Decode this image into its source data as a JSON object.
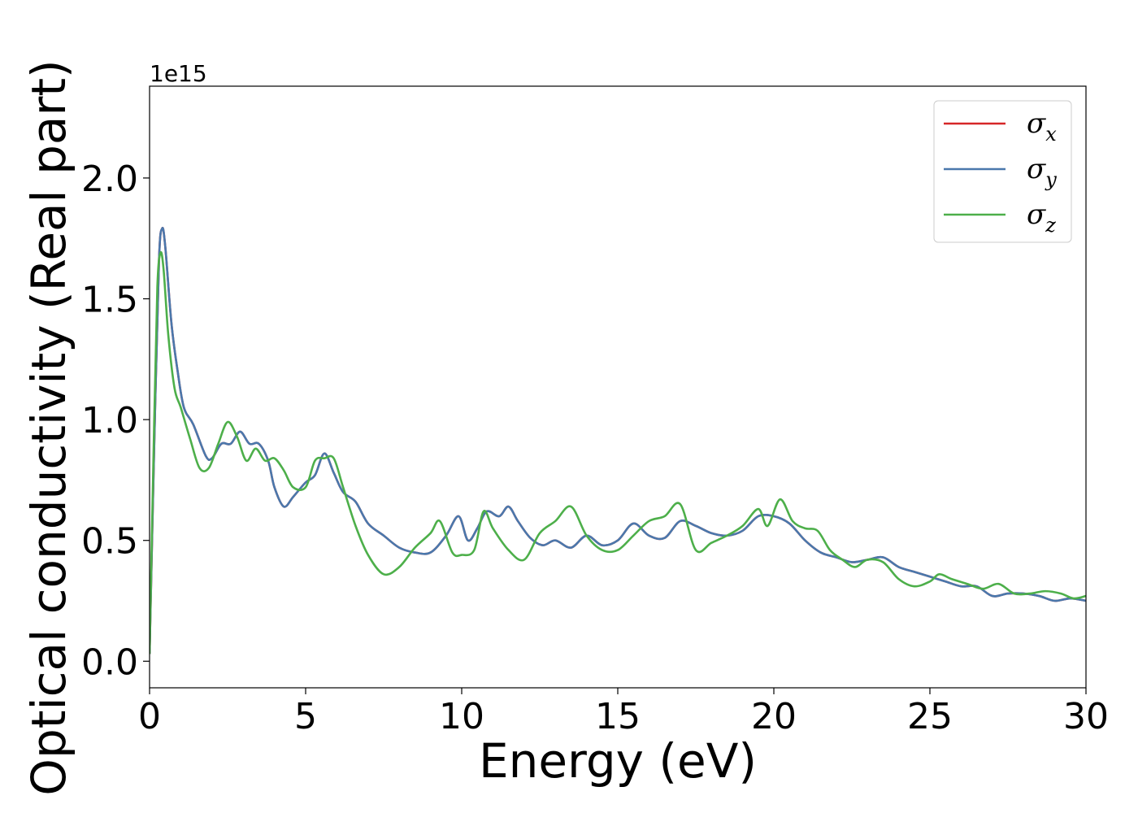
{
  "chart_data": {
    "type": "line",
    "title": "",
    "xlabel": "Energy (eV)",
    "ylabel": "Optical conductivity (Real part)",
    "y_offset_label": "1e15",
    "xlim": [
      0,
      30
    ],
    "ylim": [
      -0.11,
      2.38
    ],
    "xticks": [
      0,
      5,
      10,
      15,
      20,
      25,
      30
    ],
    "xtick_labels": [
      "0",
      "5",
      "10",
      "15",
      "20",
      "25",
      "30"
    ],
    "yticks": [
      0.0,
      0.5,
      1.0,
      1.5,
      2.0
    ],
    "ytick_labels": [
      "0.0",
      "0.5",
      "1.0",
      "1.5",
      "2.0"
    ],
    "grid": false,
    "legend_position": "top-right",
    "series": [
      {
        "name": "σx",
        "label_main": "σ",
        "label_sub": "x",
        "color": "#d62728",
        "x": [
          0,
          0.15,
          0.3,
          0.4,
          0.5,
          0.7,
          0.9,
          1.1,
          1.4,
          1.8,
          2.0,
          2.3,
          2.6,
          2.9,
          3.2,
          3.5,
          3.8,
          4.0,
          4.3,
          4.6,
          5.0,
          5.3,
          5.6,
          5.9,
          6.2,
          6.6,
          7.0,
          7.5,
          8.0,
          8.5,
          9.0,
          9.5,
          9.9,
          10.2,
          10.5,
          10.8,
          11.2,
          11.5,
          11.8,
          12.2,
          12.6,
          13.0,
          13.5,
          14.0,
          14.5,
          15.0,
          15.5,
          16.0,
          16.5,
          17.0,
          17.5,
          18.0,
          18.5,
          19.0,
          19.5,
          20.0,
          20.5,
          21.0,
          21.5,
          22.0,
          22.5,
          23.0,
          23.5,
          24.0,
          24.5,
          25.0,
          25.5,
          26.0,
          26.5,
          27.0,
          27.5,
          28.0,
          28.5,
          29.0,
          29.5,
          30.0
        ],
        "y": [
          0.03,
          0.9,
          1.65,
          1.79,
          1.72,
          1.4,
          1.2,
          1.05,
          0.98,
          0.85,
          0.84,
          0.9,
          0.9,
          0.95,
          0.9,
          0.9,
          0.83,
          0.72,
          0.64,
          0.68,
          0.74,
          0.77,
          0.86,
          0.78,
          0.7,
          0.66,
          0.57,
          0.52,
          0.47,
          0.45,
          0.45,
          0.52,
          0.6,
          0.5,
          0.55,
          0.62,
          0.6,
          0.64,
          0.58,
          0.51,
          0.48,
          0.5,
          0.47,
          0.52,
          0.48,
          0.5,
          0.57,
          0.52,
          0.51,
          0.58,
          0.56,
          0.53,
          0.52,
          0.54,
          0.6,
          0.6,
          0.57,
          0.5,
          0.45,
          0.43,
          0.41,
          0.42,
          0.43,
          0.39,
          0.37,
          0.35,
          0.33,
          0.31,
          0.31,
          0.27,
          0.28,
          0.28,
          0.27,
          0.25,
          0.26,
          0.25
        ]
      },
      {
        "name": "σy",
        "label_main": "σ",
        "label_sub": "y",
        "color": "#4a78ac",
        "x": [
          0,
          0.15,
          0.3,
          0.4,
          0.5,
          0.7,
          0.9,
          1.1,
          1.4,
          1.8,
          2.0,
          2.3,
          2.6,
          2.9,
          3.2,
          3.5,
          3.8,
          4.0,
          4.3,
          4.6,
          5.0,
          5.3,
          5.6,
          5.9,
          6.2,
          6.6,
          7.0,
          7.5,
          8.0,
          8.5,
          9.0,
          9.5,
          9.9,
          10.2,
          10.5,
          10.8,
          11.2,
          11.5,
          11.8,
          12.2,
          12.6,
          13.0,
          13.5,
          14.0,
          14.5,
          15.0,
          15.5,
          16.0,
          16.5,
          17.0,
          17.5,
          18.0,
          18.5,
          19.0,
          19.5,
          20.0,
          20.5,
          21.0,
          21.5,
          22.0,
          22.5,
          23.0,
          23.5,
          24.0,
          24.5,
          25.0,
          25.5,
          26.0,
          26.5,
          27.0,
          27.5,
          28.0,
          28.5,
          29.0,
          29.5,
          30.0
        ],
        "y": [
          0.03,
          0.9,
          1.65,
          1.79,
          1.72,
          1.4,
          1.2,
          1.05,
          0.98,
          0.85,
          0.84,
          0.9,
          0.9,
          0.95,
          0.9,
          0.9,
          0.83,
          0.72,
          0.64,
          0.68,
          0.74,
          0.77,
          0.86,
          0.78,
          0.7,
          0.66,
          0.57,
          0.52,
          0.47,
          0.45,
          0.45,
          0.52,
          0.6,
          0.5,
          0.55,
          0.62,
          0.6,
          0.64,
          0.58,
          0.51,
          0.48,
          0.5,
          0.47,
          0.52,
          0.48,
          0.5,
          0.57,
          0.52,
          0.51,
          0.58,
          0.56,
          0.53,
          0.52,
          0.54,
          0.6,
          0.6,
          0.57,
          0.5,
          0.45,
          0.43,
          0.41,
          0.42,
          0.43,
          0.39,
          0.37,
          0.35,
          0.33,
          0.31,
          0.31,
          0.27,
          0.28,
          0.28,
          0.27,
          0.25,
          0.26,
          0.25
        ]
      },
      {
        "name": "σz",
        "label_main": "σ",
        "label_sub": "z",
        "color": "#4daf4a",
        "x": [
          0,
          0.15,
          0.25,
          0.35,
          0.45,
          0.6,
          0.8,
          1.0,
          1.3,
          1.6,
          1.9,
          2.2,
          2.5,
          2.8,
          3.1,
          3.4,
          3.7,
          4.0,
          4.3,
          4.6,
          5.0,
          5.3,
          5.6,
          5.9,
          6.2,
          6.6,
          7.0,
          7.5,
          8.0,
          8.5,
          9.0,
          9.3,
          9.7,
          10.0,
          10.4,
          10.7,
          11.0,
          11.5,
          12.0,
          12.5,
          13.0,
          13.5,
          14.0,
          14.5,
          15.0,
          15.5,
          16.0,
          16.5,
          17.0,
          17.5,
          18.0,
          18.5,
          19.0,
          19.5,
          19.8,
          20.2,
          20.6,
          21.0,
          21.4,
          21.8,
          22.2,
          22.6,
          23.0,
          23.5,
          24.0,
          24.5,
          25.0,
          25.3,
          25.7,
          26.2,
          26.7,
          27.2,
          27.7,
          28.2,
          28.7,
          29.2,
          29.6,
          30.0
        ],
        "y": [
          0.03,
          1.0,
          1.55,
          1.69,
          1.62,
          1.35,
          1.13,
          1.05,
          0.92,
          0.8,
          0.8,
          0.9,
          0.99,
          0.93,
          0.83,
          0.88,
          0.83,
          0.84,
          0.79,
          0.72,
          0.72,
          0.83,
          0.84,
          0.84,
          0.72,
          0.56,
          0.44,
          0.36,
          0.39,
          0.47,
          0.53,
          0.58,
          0.45,
          0.44,
          0.46,
          0.62,
          0.55,
          0.46,
          0.42,
          0.53,
          0.58,
          0.64,
          0.52,
          0.46,
          0.46,
          0.52,
          0.58,
          0.6,
          0.65,
          0.46,
          0.49,
          0.52,
          0.56,
          0.63,
          0.56,
          0.67,
          0.58,
          0.55,
          0.54,
          0.46,
          0.42,
          0.39,
          0.42,
          0.41,
          0.34,
          0.31,
          0.33,
          0.36,
          0.34,
          0.32,
          0.3,
          0.32,
          0.28,
          0.28,
          0.29,
          0.28,
          0.26,
          0.27
        ]
      }
    ]
  }
}
